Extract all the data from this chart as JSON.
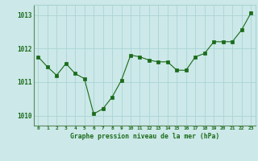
{
  "x": [
    0,
    1,
    2,
    3,
    4,
    5,
    6,
    7,
    8,
    9,
    10,
    11,
    12,
    13,
    14,
    15,
    16,
    17,
    18,
    19,
    20,
    21,
    22,
    23
  ],
  "y": [
    1011.75,
    1011.45,
    1011.2,
    1011.55,
    1011.25,
    1011.1,
    1010.05,
    1010.2,
    1010.55,
    1011.05,
    1011.8,
    1011.75,
    1011.65,
    1011.6,
    1011.6,
    1011.35,
    1011.35,
    1011.75,
    1011.85,
    1012.2,
    1012.2,
    1012.2,
    1012.55,
    1013.05
  ],
  "ylim": [
    1009.7,
    1013.3
  ],
  "yticks": [
    1010,
    1011,
    1012,
    1013
  ],
  "xlabel": "Graphe pression niveau de la mer (hPa)",
  "line_color": "#1a6b1a",
  "marker_color": "#1a6b1a",
  "bg_color": "#cce8e8",
  "grid_color": "#aad4d4",
  "tick_color": "#1a6b1a",
  "label_color": "#1a6b1a"
}
